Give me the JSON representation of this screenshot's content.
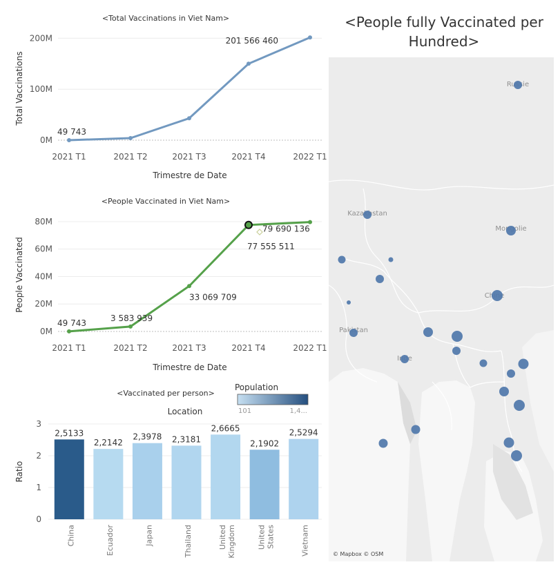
{
  "colors": {
    "line1": "#7299c0",
    "line2": "#55a14a",
    "grid": "#ececec",
    "zero": "#bdbdbd",
    "map_bg": "#ececec",
    "map_land": "#dcdcdc",
    "map_water": "#f7f7f7",
    "map_bubble": "#4f77aa",
    "legend_lo": "#c6dff1",
    "legend_hi": "#254f7f"
  },
  "charts": {
    "total": {
      "title": "<Total Vaccinations in Viet Nam>",
      "xlabel": "Trimestre de Date",
      "ylabel": "Total Vaccinations"
    },
    "people": {
      "title": "<People Vaccinated in Viet Nam>",
      "xlabel": "Trimestre de Date",
      "ylabel": "People Vaccinated"
    },
    "ratio": {
      "title": "<Vaccinated per person>",
      "header": "Location",
      "ylabel": "Ratio"
    }
  },
  "legend": {
    "title": "Population",
    "min_label": "101",
    "max_label": "1,4..."
  },
  "map": {
    "title": "<People fully Vaccinated per Hundred>",
    "attribution": "© Mapbox © OSM",
    "labels": [
      "Russie",
      "Kazakhstan",
      "Mongolie",
      "Chine",
      "Pakistan",
      "Inde"
    ]
  },
  "chart_data": [
    {
      "type": "line",
      "title": "<Total Vaccinations in Viet Nam>",
      "xlabel": "Trimestre de Date",
      "ylabel": "Total Vaccinations",
      "x": [
        "2021 T1",
        "2021 T2",
        "2021 T3",
        "2021 T4",
        "2022 T1"
      ],
      "y": [
        49743,
        4000000,
        43000000,
        150000000,
        201566460
      ],
      "yticks": [
        "0M",
        "100M",
        "200M"
      ],
      "ylim": [
        0,
        210000000
      ],
      "point_labels": [
        "49 743",
        "",
        "",
        "",
        "201 566 460"
      ]
    },
    {
      "type": "line",
      "title": "<People Vaccinated in Viet Nam>",
      "xlabel": "Trimestre de Date",
      "ylabel": "People Vaccinated",
      "x": [
        "2021 T1",
        "2021 T2",
        "2021 T3",
        "2021 T4",
        "2022 T1"
      ],
      "y": [
        49743,
        3583939,
        33069709,
        77555511,
        79690136
      ],
      "yticks": [
        "0M",
        "20M",
        "40M",
        "60M",
        "80M"
      ],
      "ylim": [
        0,
        84000000
      ],
      "point_labels": [
        "49 743",
        "3 583 939",
        "33 069 709",
        "77 555 511",
        "79 690 136"
      ]
    },
    {
      "type": "bar",
      "title": "<Vaccinated per person>",
      "xlabel": "Location",
      "ylabel": "Ratio",
      "categories": [
        "China",
        "Ecuador",
        "Japan",
        "Thailand",
        "United Kingdom",
        "United States",
        "Vietnam"
      ],
      "values": [
        2.5133,
        2.2142,
        2.3978,
        2.3181,
        2.6665,
        2.1902,
        2.5294
      ],
      "value_labels": [
        "2,5133",
        "2,2142",
        "2,3978",
        "2,3181",
        "2,6665",
        "2,1902",
        "2,5294"
      ],
      "colors": [
        "#2a5b8a",
        "#b6daf0",
        "#a9d0ec",
        "#b1d6ef",
        "#b2d7ef",
        "#8fbde0",
        "#aed3ee"
      ],
      "yticks": [
        "0",
        "1",
        "2",
        "3"
      ],
      "ylim": [
        0,
        3
      ]
    }
  ]
}
